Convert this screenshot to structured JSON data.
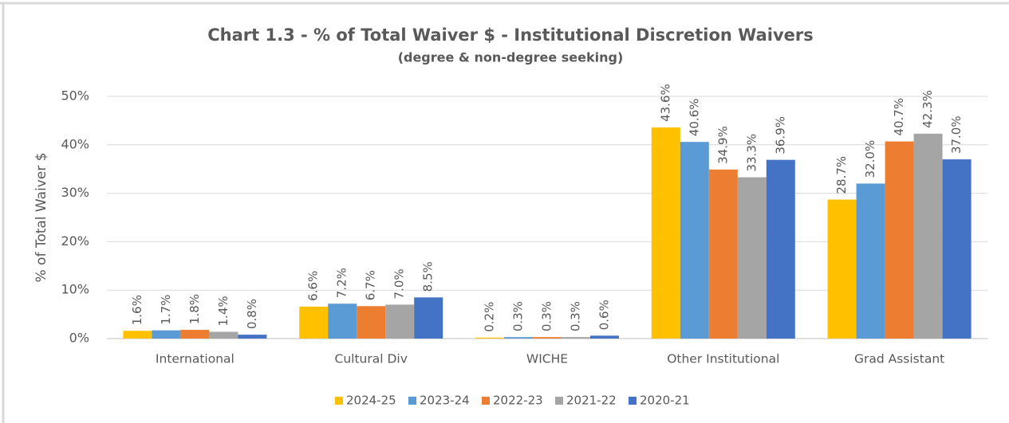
{
  "chart_data": {
    "type": "bar",
    "title": "Chart 1.3 - % of Total Waiver $ - Institutional Discretion Waivers",
    "subtitle": "(degree & non-degree seeking)",
    "y_label": "% of Total Waiver $",
    "categories": [
      "International",
      "Cultural Div",
      "WICHE",
      "Other Institutional",
      "Grad Assistant"
    ],
    "series": [
      {
        "name": "2024-25",
        "color": "#FFC000",
        "values": [
          1.6,
          6.6,
          0.2,
          43.6,
          28.7
        ],
        "value_labels": [
          "1.6%",
          "6.6%",
          "0.2%",
          "43.6%",
          "28.7%"
        ]
      },
      {
        "name": "2023-24",
        "color": "#5B9BD5",
        "values": [
          1.7,
          7.2,
          0.3,
          40.6,
          32.0
        ],
        "value_labels": [
          "1.7%",
          "7.2%",
          "0.3%",
          "40.6%",
          "32.0%"
        ]
      },
      {
        "name": "2022-23",
        "color": "#ED7D31",
        "values": [
          1.8,
          6.7,
          0.3,
          34.9,
          40.7
        ],
        "value_labels": [
          "1.8%",
          "6.7%",
          "0.3%",
          "34.9%",
          "40.7%"
        ]
      },
      {
        "name": "2021-22",
        "color": "#A5A5A5",
        "values": [
          1.4,
          7.0,
          0.3,
          33.3,
          42.3
        ],
        "value_labels": [
          "1.4%",
          "7.0%",
          "0.3%",
          "33.3%",
          "42.3%"
        ]
      },
      {
        "name": "2020-21",
        "color": "#4472C4",
        "values": [
          0.8,
          8.5,
          0.6,
          36.9,
          37.0
        ],
        "value_labels": [
          "0.8%",
          "8.5%",
          "0.6%",
          "36.9%",
          "37.0%"
        ]
      }
    ],
    "ylim": [
      0,
      50
    ],
    "yticks": [
      {
        "value": 0,
        "label": "0%"
      },
      {
        "value": 10,
        "label": "10%"
      },
      {
        "value": 20,
        "label": "20%"
      },
      {
        "value": 30,
        "label": "30%"
      },
      {
        "value": 40,
        "label": "40%"
      },
      {
        "value": 50,
        "label": "50%"
      }
    ],
    "grid": true,
    "legend": "bottom"
  }
}
